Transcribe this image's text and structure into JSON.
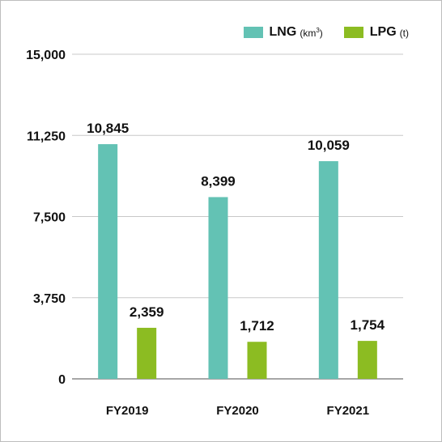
{
  "chart_data": {
    "type": "bar",
    "categories": [
      "FY2019",
      "FY2020",
      "FY2021"
    ],
    "series": [
      {
        "name": "LNG",
        "unit": "km",
        "unit_sup": "3",
        "unit_close": ")",
        "unit_open": "(",
        "color": "#63c2b4",
        "values": [
          10845,
          8399,
          10059
        ],
        "labels": [
          "10,845",
          "8,399",
          "10,059"
        ]
      },
      {
        "name": "LPG",
        "unit": "t",
        "unit_sup": "",
        "unit_close": ")",
        "unit_open": "(",
        "color": "#8cbc22",
        "values": [
          2359,
          1712,
          1754
        ],
        "labels": [
          "2,359",
          "1,712",
          "1,754"
        ]
      }
    ],
    "ylim": [
      0,
      15000
    ],
    "yticks": [
      0,
      3750,
      7500,
      11250,
      15000
    ],
    "ytick_labels": [
      "0",
      "3,750",
      "7,500",
      "11,250",
      "15,000"
    ],
    "grid": true,
    "legend_position": "top-right",
    "title": "",
    "xlabel": "",
    "ylabel": ""
  }
}
